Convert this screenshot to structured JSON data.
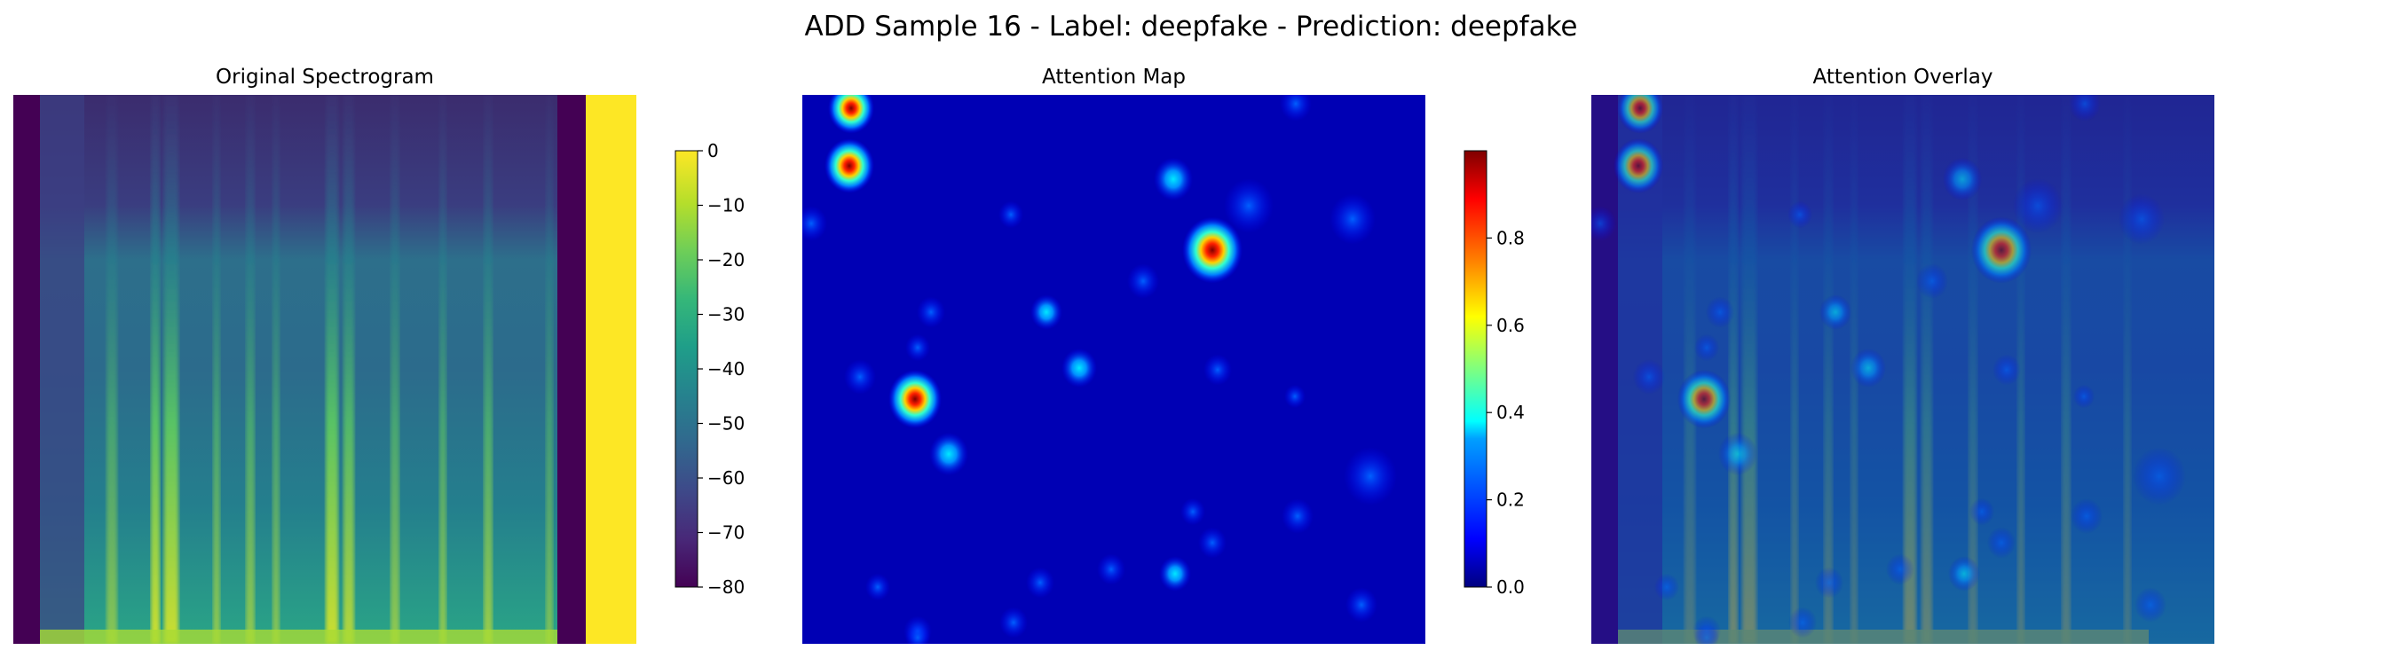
{
  "figure": {
    "suptitle": "ADD Sample 16 - Label: deepfake - Prediction: deepfake"
  },
  "colormaps": {
    "viridis": [
      "#440154",
      "#482878",
      "#3e4989",
      "#31688e",
      "#26828e",
      "#1f9e89",
      "#35b779",
      "#6ece58",
      "#b5de2b",
      "#fde725"
    ],
    "jet": [
      "#00007f",
      "#0000ff",
      "#007fff",
      "#00ffff",
      "#7fff7f",
      "#ffff00",
      "#ff7f00",
      "#ff0000",
      "#7f0000"
    ]
  },
  "chart_data": [
    {
      "type": "heatmap",
      "title": "Original Spectrogram",
      "colormap": "viridis",
      "colorbar": {
        "vmin": -80,
        "vmax": 0,
        "ticks": [
          0,
          -10,
          -20,
          -30,
          -40,
          -50,
          -60,
          -70,
          -80
        ],
        "tick_labels": [
          "0",
          "−10",
          "−20",
          "−30",
          "−40",
          "−50",
          "−60",
          "−70",
          "−80"
        ]
      },
      "axes": "off"
    },
    {
      "type": "heatmap",
      "title": "Attention Map",
      "colormap": "jet",
      "colorbar": {
        "vmin": 0.0,
        "vmax": 1.0,
        "ticks": [
          0.0,
          0.2,
          0.4,
          0.6,
          0.8
        ],
        "tick_labels": [
          "0.0",
          "0.2",
          "0.4",
          "0.6",
          "0.8"
        ]
      },
      "axes": "off"
    },
    {
      "type": "heatmap",
      "title": "Attention Overlay",
      "colormap": "jet over viridis",
      "axes": "off"
    }
  ]
}
